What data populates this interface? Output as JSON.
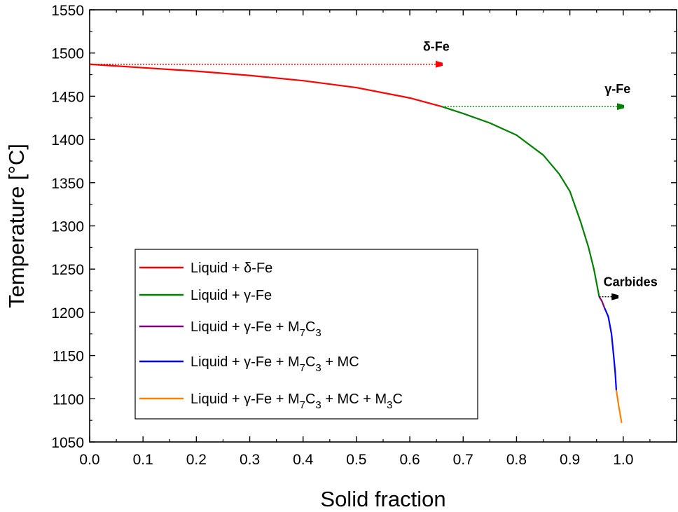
{
  "chart_data": {
    "type": "line",
    "title": "",
    "xlabel": "Solid fraction",
    "ylabel": "Temperature [°C]",
    "xlim": [
      0.0,
      1.1
    ],
    "ylim": [
      1050,
      1550
    ],
    "xticks": [
      "0.0",
      "0.1",
      "0.2",
      "0.3",
      "0.4",
      "0.5",
      "0.6",
      "0.7",
      "0.8",
      "0.9",
      "1.0"
    ],
    "yticks": [
      "1050",
      "1100",
      "1150",
      "1200",
      "1250",
      "1300",
      "1350",
      "1400",
      "1450",
      "1500",
      "1550"
    ],
    "series": [
      {
        "name": "Liquid + δ-Fe",
        "color": "#ff0000",
        "points": [
          [
            0.0,
            1487
          ],
          [
            0.1,
            1483
          ],
          [
            0.2,
            1479
          ],
          [
            0.3,
            1474
          ],
          [
            0.4,
            1468
          ],
          [
            0.5,
            1460
          ],
          [
            0.6,
            1448
          ],
          [
            0.66,
            1438
          ]
        ]
      },
      {
        "name": "Liquid + γ-Fe",
        "color": "#008000",
        "points": [
          [
            0.66,
            1438
          ],
          [
            0.7,
            1430
          ],
          [
            0.75,
            1419
          ],
          [
            0.8,
            1405
          ],
          [
            0.85,
            1382
          ],
          [
            0.88,
            1360
          ],
          [
            0.9,
            1340
          ],
          [
            0.92,
            1305
          ],
          [
            0.935,
            1275
          ],
          [
            0.945,
            1250
          ],
          [
            0.955,
            1218
          ]
        ]
      },
      {
        "name": "Liquid + γ-Fe + M₇C₃",
        "color": "#800080",
        "points": [
          [
            0.955,
            1218
          ],
          [
            0.96,
            1213
          ],
          [
            0.965,
            1205
          ]
        ]
      },
      {
        "name": "Liquid + γ-Fe + M₇C₃ + MC",
        "color": "#0000ff",
        "points": [
          [
            0.965,
            1205
          ],
          [
            0.972,
            1195
          ],
          [
            0.978,
            1175
          ],
          [
            0.982,
            1150
          ],
          [
            0.985,
            1130
          ],
          [
            0.987,
            1110
          ]
        ]
      },
      {
        "name": "Liquid + γ-Fe + M₇C₃ + MC +  M₃C",
        "color": "#ff8000",
        "points": [
          [
            0.987,
            1110
          ],
          [
            0.992,
            1090
          ],
          [
            0.997,
            1072
          ]
        ]
      }
    ],
    "annotations": [
      {
        "label": "δ-Fe",
        "from": [
          0.0,
          1487
        ],
        "to": [
          0.66,
          1487
        ],
        "color": "#ff0000"
      },
      {
        "label": "γ-Fe",
        "from": [
          0.66,
          1438
        ],
        "to": [
          1.0,
          1438
        ],
        "color": "#008000"
      },
      {
        "label": "Carbides",
        "from": [
          0.955,
          1218
        ],
        "to": [
          0.99,
          1218
        ],
        "color": "#000000"
      }
    ],
    "legend": {
      "position": "lower-left",
      "entries": [
        {
          "parts": [
            {
              "t": "Liquid + δ-Fe"
            }
          ]
        },
        {
          "parts": [
            {
              "t": "Liquid + γ-Fe"
            }
          ]
        },
        {
          "parts": [
            {
              "t": "Liquid + γ-Fe + M"
            },
            {
              "t": "7",
              "sub": true
            },
            {
              "t": "C"
            },
            {
              "t": "3",
              "sub": true
            }
          ]
        },
        {
          "parts": [
            {
              "t": "Liquid + γ-Fe + M"
            },
            {
              "t": "7",
              "sub": true
            },
            {
              "t": "C"
            },
            {
              "t": "3",
              "sub": true
            },
            {
              "t": " + MC"
            }
          ]
        },
        {
          "parts": [
            {
              "t": "Liquid + γ-Fe + M"
            },
            {
              "t": "7",
              "sub": true
            },
            {
              "t": "C"
            },
            {
              "t": "3",
              "sub": true
            },
            {
              "t": " + MC +  M"
            },
            {
              "t": "3",
              "sub": true
            },
            {
              "t": "C"
            }
          ]
        }
      ]
    }
  }
}
